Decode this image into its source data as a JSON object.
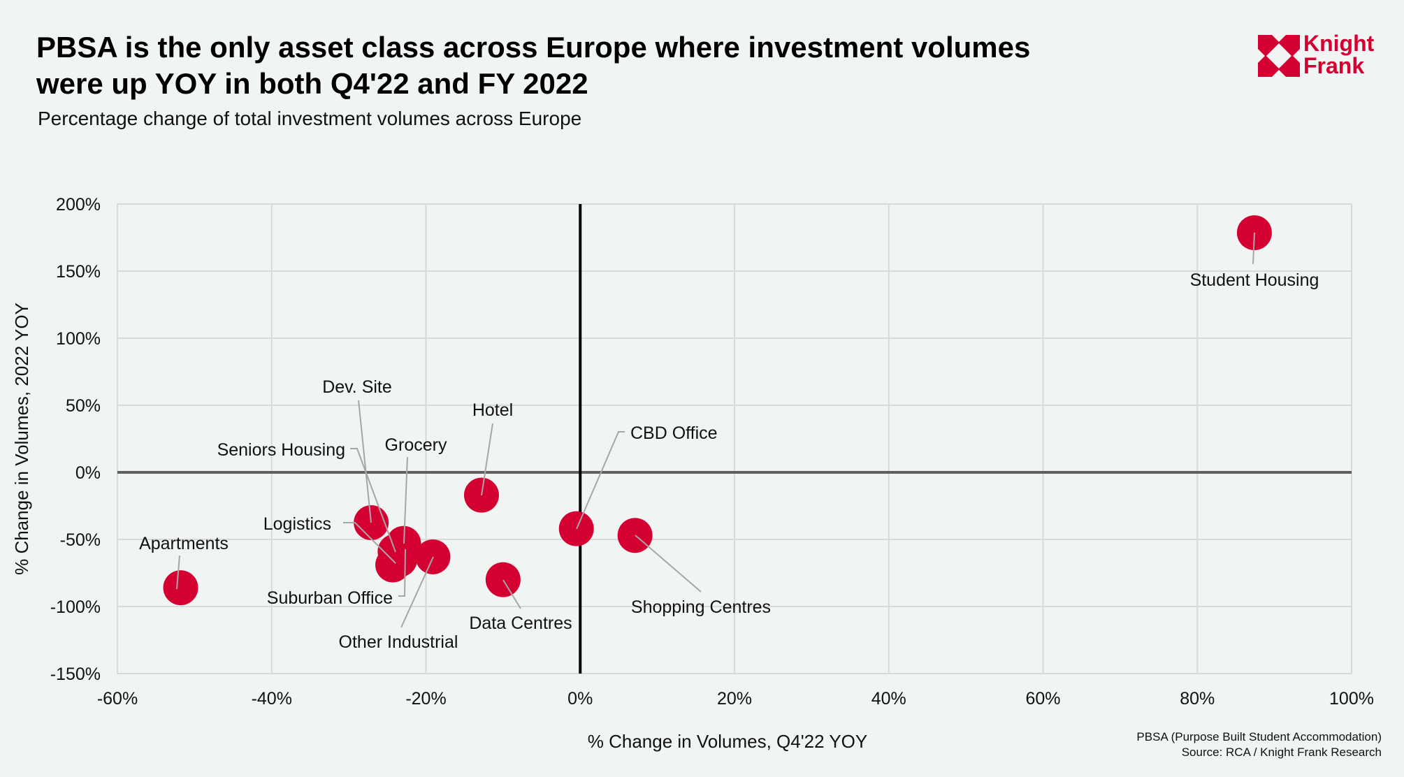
{
  "header": {
    "title_line1": "PBSA is the only asset class across Europe where investment volumes",
    "title_line2": "were up YOY in both Q4'22 and FY 2022",
    "subtitle": "Percentage change of total investment volumes across Europe"
  },
  "logo": {
    "line1": "Knight",
    "line2": "Frank",
    "color": "#d50032"
  },
  "footnote": {
    "line1": "PBSA (Purpose Built Student Accommodation)",
    "line2": "Source: RCA / Knight Frank Research"
  },
  "chart_data": {
    "type": "scatter",
    "title": "PBSA is the only asset class across Europe where investment volumes were up YOY in both Q4'22 and FY 2022",
    "subtitle": "Percentage change of total investment volumes across Europe",
    "xlabel": "% Change in Volumes, Q4'22 YOY",
    "ylabel": "% Change in Volumes, 2022 YOY",
    "xlim": [
      -60,
      100
    ],
    "ylim": [
      -150,
      200
    ],
    "xticks": [
      -60,
      -40,
      -20,
      0,
      20,
      40,
      60,
      80,
      100
    ],
    "yticks": [
      -150,
      -100,
      -50,
      0,
      50,
      100,
      150,
      200
    ],
    "xtick_labels": [
      "-60%",
      "-40%",
      "-20%",
      "0%",
      "20%",
      "40%",
      "60%",
      "80%",
      "100%"
    ],
    "ytick_labels": [
      "-150%",
      "-100%",
      "-50%",
      "0%",
      "50%",
      "100%",
      "150%",
      "200%"
    ],
    "grid": true,
    "marker_color": "#d50032",
    "points": [
      {
        "label": "Student Housing",
        "x": 87.4,
        "y": 178.6
      },
      {
        "label": "Hotel",
        "x": -12.8,
        "y": -17
      },
      {
        "label": "CBD Office",
        "x": -0.5,
        "y": -42
      },
      {
        "label": "Shopping Centres",
        "x": 7.1,
        "y": -47
      },
      {
        "label": "Data Centres",
        "x": -10,
        "y": -80
      },
      {
        "label": "Apartments",
        "x": -51.8,
        "y": -86
      },
      {
        "label": "Dev. Site",
        "x": -27.1,
        "y": -37.5
      },
      {
        "label": "Grocery",
        "x": -22.9,
        "y": -53
      },
      {
        "label": "Seniors Housing",
        "x": -24.0,
        "y": -59
      },
      {
        "label": "Logistics",
        "x": -24.3,
        "y": -69
      },
      {
        "label": "Suburban Office",
        "x": -23.4,
        "y": -65
      },
      {
        "label": "Other Industrial",
        "x": -19.1,
        "y": -63
      }
    ]
  }
}
